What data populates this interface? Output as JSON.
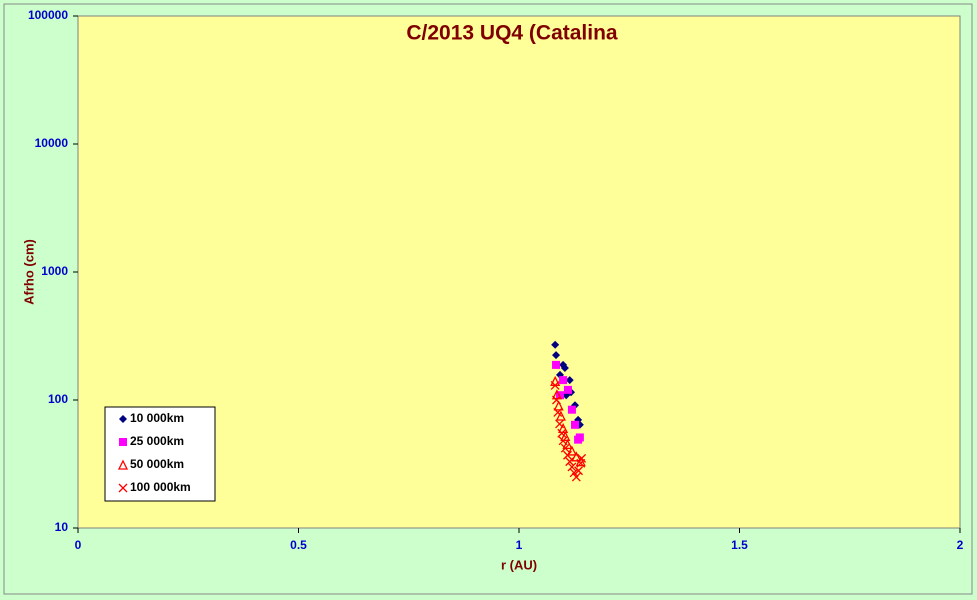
{
  "chart_data": {
    "type": "scatter",
    "title": "C/2013 UQ4 (Catalina",
    "x_label": "r (AU)",
    "y_label": "Afrho (cm)",
    "xlim": [
      0,
      2
    ],
    "xticks": [
      0,
      0.5,
      1,
      1.5,
      2
    ],
    "ylim": [
      10,
      100000
    ],
    "yticks": [
      10,
      100,
      1000,
      10000,
      100000
    ],
    "log_y": true,
    "legend_position": "lower left",
    "series": [
      {
        "name": "10 000km",
        "color": "#000080",
        "marker": "diamond",
        "x": [
          1.082,
          1.084,
          1.093,
          1.1,
          1.104,
          1.107,
          1.115,
          1.118,
          1.127,
          1.134,
          1.138
        ],
        "values": [
          270,
          224,
          157,
          188,
          178,
          109,
          143,
          115,
          91,
          70,
          64
        ]
      },
      {
        "name": "25 000km",
        "color": "#ff00ff",
        "marker": "square",
        "x": [
          1.084,
          1.093,
          1.1,
          1.111,
          1.12,
          1.127,
          1.134,
          1.138
        ],
        "values": [
          188,
          109,
          143,
          120,
          84,
          64,
          49,
          51
        ]
      },
      {
        "name": "50 000km",
        "color": "#ff0000",
        "marker": "triangle",
        "x": [
          1.082,
          1.086,
          1.09,
          1.095,
          1.1,
          1.105,
          1.11,
          1.12,
          1.13,
          1.14
        ],
        "values": [
          140,
          110,
          90,
          75,
          60,
          52,
          45,
          40,
          36,
          33
        ]
      },
      {
        "name": "100 000km",
        "color": "#ff0000",
        "marker": "cross",
        "x": [
          1.082,
          1.085,
          1.088,
          1.092,
          1.097,
          1.1,
          1.105,
          1.11,
          1.115,
          1.12,
          1.125,
          1.13,
          1.135,
          1.14,
          1.142
        ],
        "values": [
          130,
          100,
          80,
          65,
          55,
          48,
          42,
          37,
          33,
          30,
          27,
          25,
          28,
          32,
          35
        ]
      }
    ]
  }
}
